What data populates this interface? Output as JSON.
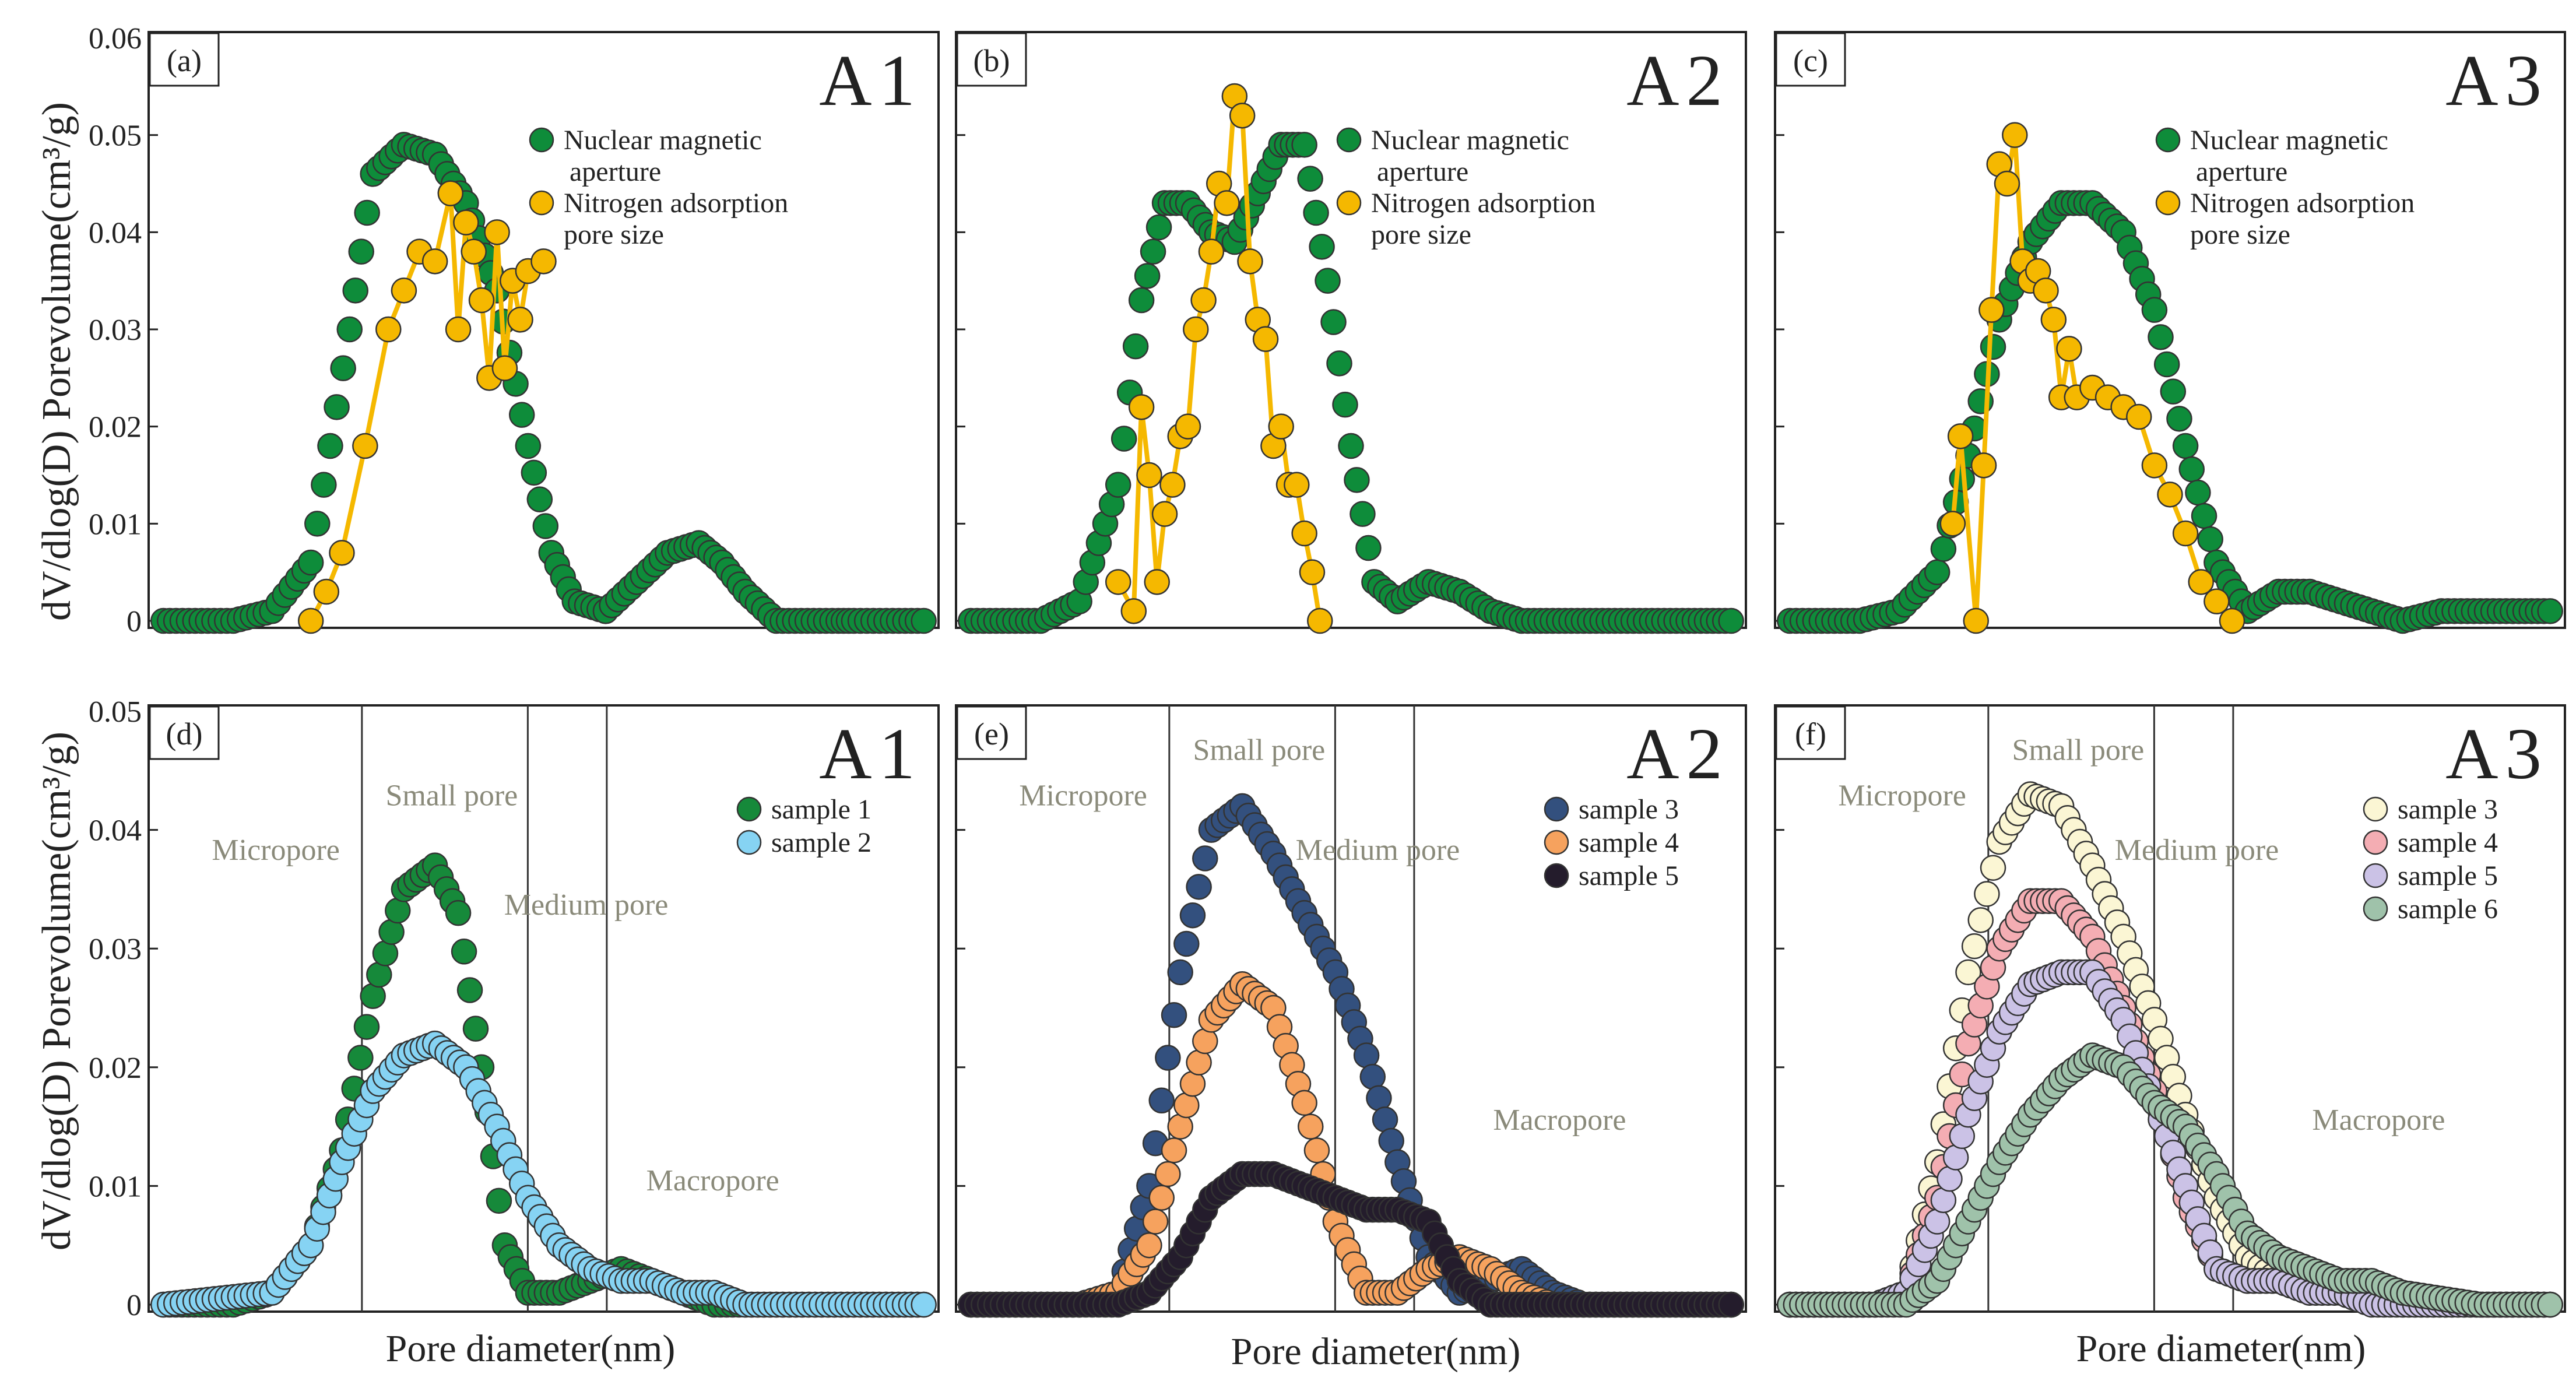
{
  "figure": {
    "y_axis_label": "dV/dlog(D) Porevolume(cm³/g)",
    "x_axis_label": "Pore diameter(nm)"
  },
  "chart_data": [
    {
      "type": "scatter",
      "panel_label": "(a)",
      "sample_label": "A1",
      "ylim": [
        0,
        0.06
      ],
      "yticks": [
        "0",
        "0.01",
        "0.02",
        "0.03",
        "0.04",
        "0.05",
        "0.06"
      ],
      "xlabel": "",
      "ylabel": "dV/dlog(D) Porevolume(cm³/g)",
      "legend": [
        "Nuclear magnetic aperture",
        "Nitrogen adsorption pore size"
      ],
      "series": [
        {
          "name": "Nuclear magnetic aperture",
          "color": "#0e8c3a",
          "x": [
            0.01,
            0.1,
            0.15,
            0.2,
            0.25,
            0.28,
            0.32,
            0.36,
            0.4,
            0.44,
            0.48,
            0.51,
            0.54,
            0.58,
            0.62,
            0.66,
            0.7,
            0.73,
            0.76,
            0.8,
            0.84,
            0.88,
            0.9,
            0.95,
            0.99
          ],
          "y": [
            0,
            0,
            0.001,
            0.006,
            0.03,
            0.046,
            0.049,
            0.048,
            0.043,
            0.034,
            0.018,
            0.007,
            0.002,
            0.001,
            0.004,
            0.007,
            0.008,
            0.006,
            0.003,
            0,
            0,
            0,
            0,
            0,
            0
          ]
        },
        {
          "name": "Nitrogen adsorption pore size",
          "color": "#f5b800",
          "x": [
            0.2,
            0.22,
            0.24,
            0.27,
            0.3,
            0.32,
            0.34,
            0.36,
            0.38,
            0.39,
            0.4,
            0.41,
            0.42,
            0.43,
            0.44,
            0.45,
            0.46,
            0.47,
            0.48,
            0.5
          ],
          "y": [
            0,
            0.003,
            0.007,
            0.018,
            0.03,
            0.034,
            0.038,
            0.037,
            0.044,
            0.03,
            0.041,
            0.038,
            0.033,
            0.025,
            0.04,
            0.026,
            0.035,
            0.031,
            0.036,
            0.037
          ]
        }
      ]
    },
    {
      "type": "scatter",
      "panel_label": "(b)",
      "sample_label": "A2",
      "ylim": [
        0,
        0.06
      ],
      "yticks": [],
      "legend": [
        "Nuclear magnetic aperture",
        "Nitrogen adsorption pore size"
      ],
      "series": [
        {
          "name": "Nuclear magnetic aperture",
          "color": "#0e8c3a",
          "x": [
            0.01,
            0.1,
            0.15,
            0.2,
            0.23,
            0.26,
            0.29,
            0.32,
            0.35,
            0.38,
            0.41,
            0.44,
            0.47,
            0.5,
            0.53,
            0.56,
            0.6,
            0.64,
            0.68,
            0.72,
            0.76,
            0.8,
            0.88,
            0.99
          ],
          "y": [
            0,
            0,
            0.002,
            0.014,
            0.033,
            0.043,
            0.043,
            0.04,
            0.039,
            0.044,
            0.049,
            0.049,
            0.035,
            0.018,
            0.004,
            0.002,
            0.004,
            0.003,
            0.001,
            0,
            0,
            0,
            0,
            0
          ]
        },
        {
          "name": "Nitrogen adsorption pore size",
          "color": "#f5b800",
          "x": [
            0.2,
            0.22,
            0.23,
            0.24,
            0.25,
            0.26,
            0.27,
            0.28,
            0.29,
            0.3,
            0.31,
            0.32,
            0.33,
            0.34,
            0.35,
            0.36,
            0.37,
            0.38,
            0.39,
            0.4,
            0.41,
            0.42,
            0.43,
            0.44,
            0.45,
            0.46
          ],
          "y": [
            0.004,
            0.001,
            0.022,
            0.015,
            0.004,
            0.011,
            0.014,
            0.019,
            0.02,
            0.03,
            0.033,
            0.038,
            0.045,
            0.043,
            0.054,
            0.052,
            0.037,
            0.031,
            0.029,
            0.018,
            0.02,
            0.014,
            0.014,
            0.009,
            0.005,
            0
          ]
        }
      ]
    },
    {
      "type": "scatter",
      "panel_label": "(c)",
      "sample_label": "A3",
      "ylim": [
        0,
        0.06
      ],
      "yticks": [],
      "legend": [
        "Nuclear magnetic aperture",
        "Nitrogen adsorption pore size"
      ],
      "series": [
        {
          "name": "Nuclear magnetic aperture",
          "color": "#0e8c3a",
          "x": [
            0.01,
            0.1,
            0.15,
            0.2,
            0.24,
            0.28,
            0.32,
            0.36,
            0.4,
            0.44,
            0.48,
            0.52,
            0.56,
            0.6,
            0.64,
            0.68,
            0.72,
            0.76,
            0.8,
            0.85,
            0.9,
            0.95,
            0.99
          ],
          "y": [
            0,
            0,
            0.001,
            0.005,
            0.017,
            0.031,
            0.039,
            0.043,
            0.043,
            0.04,
            0.032,
            0.018,
            0.006,
            0.001,
            0.003,
            0.003,
            0.002,
            0.001,
            0,
            0.001,
            0.001,
            0.001,
            0.001
          ]
        },
        {
          "name": "Nitrogen adsorption pore size",
          "color": "#f5b800",
          "x": [
            0.22,
            0.23,
            0.25,
            0.26,
            0.27,
            0.28,
            0.29,
            0.3,
            0.31,
            0.32,
            0.33,
            0.34,
            0.35,
            0.36,
            0.37,
            0.38,
            0.4,
            0.42,
            0.44,
            0.46,
            0.48,
            0.5,
            0.52,
            0.54,
            0.56,
            0.58
          ],
          "y": [
            0.01,
            0.019,
            0,
            0.016,
            0.032,
            0.047,
            0.045,
            0.05,
            0.037,
            0.035,
            0.036,
            0.034,
            0.031,
            0.023,
            0.028,
            0.023,
            0.024,
            0.023,
            0.022,
            0.021,
            0.016,
            0.013,
            0.009,
            0.004,
            0.002,
            0
          ]
        }
      ]
    },
    {
      "type": "scatter",
      "panel_label": "(d)",
      "sample_label": "A1",
      "ylim": [
        0,
        0.05
      ],
      "yticks": [
        "0",
        "0.01",
        "0.02",
        "0.03",
        "0.04",
        "0.05"
      ],
      "region_labels": [
        "Micropore",
        "Small pore",
        "Medium pore",
        "Macropore"
      ],
      "legend": [
        "sample 1",
        "sample 2"
      ],
      "series": [
        {
          "name": "sample 1",
          "color": "#16893a",
          "x": [
            0.01,
            0.05,
            0.1,
            0.15,
            0.2,
            0.24,
            0.28,
            0.32,
            0.36,
            0.39,
            0.42,
            0.45,
            0.48,
            0.52,
            0.56,
            0.6,
            0.64,
            0.68,
            0.72,
            0.76,
            0.8,
            0.9,
            0.99
          ],
          "y": [
            0,
            0,
            0,
            0.001,
            0.005,
            0.013,
            0.026,
            0.035,
            0.037,
            0.033,
            0.02,
            0.005,
            0.001,
            0.001,
            0.002,
            0.003,
            0.002,
            0.001,
            0,
            0,
            0,
            0,
            0
          ]
        },
        {
          "name": "sample 2",
          "color": "#86d3f3",
          "x": [
            0.01,
            0.15,
            0.2,
            0.24,
            0.28,
            0.32,
            0.36,
            0.4,
            0.44,
            0.48,
            0.52,
            0.56,
            0.6,
            0.64,
            0.68,
            0.72,
            0.76,
            0.8,
            0.9,
            0.99
          ],
          "y": [
            0,
            0.001,
            0.005,
            0.012,
            0.018,
            0.021,
            0.022,
            0.02,
            0.015,
            0.009,
            0.005,
            0.003,
            0.002,
            0.002,
            0.001,
            0.001,
            0,
            0,
            0,
            0
          ]
        }
      ]
    },
    {
      "type": "scatter",
      "panel_label": "(e)",
      "sample_label": "A2",
      "ylim": [
        0,
        0.05
      ],
      "yticks": [],
      "region_labels": [
        "Micropore",
        "Small pore",
        "Medium pore",
        "Macropore"
      ],
      "legend": [
        "sample 3",
        "sample 4",
        "sample 5"
      ],
      "series": [
        {
          "name": "sample 3",
          "color": "#33507e",
          "x": [
            0.01,
            0.15,
            0.2,
            0.24,
            0.28,
            0.32,
            0.36,
            0.4,
            0.44,
            0.48,
            0.52,
            0.56,
            0.6,
            0.64,
            0.68,
            0.72,
            0.76,
            0.8,
            0.99
          ],
          "y": [
            0,
            0,
            0.001,
            0.01,
            0.028,
            0.04,
            0.042,
            0.038,
            0.033,
            0.028,
            0.021,
            0.012,
            0.004,
            0.001,
            0.002,
            0.003,
            0.001,
            0,
            0
          ]
        },
        {
          "name": "sample 4",
          "color": "#f6a25e",
          "x": [
            0.01,
            0.15,
            0.2,
            0.24,
            0.28,
            0.32,
            0.36,
            0.4,
            0.44,
            0.48,
            0.52,
            0.56,
            0.6,
            0.64,
            0.68,
            0.72,
            0.76,
            0.8,
            0.99
          ],
          "y": [
            0,
            0,
            0.001,
            0.005,
            0.015,
            0.024,
            0.027,
            0.025,
            0.017,
            0.007,
            0.001,
            0.001,
            0.003,
            0.004,
            0.003,
            0.001,
            0,
            0,
            0
          ]
        },
        {
          "name": "sample 5",
          "color": "#241c2c",
          "x": [
            0.01,
            0.15,
            0.2,
            0.24,
            0.28,
            0.32,
            0.36,
            0.4,
            0.44,
            0.48,
            0.52,
            0.56,
            0.6,
            0.64,
            0.68,
            0.99
          ],
          "y": [
            0,
            0,
            0,
            0.001,
            0.004,
            0.009,
            0.011,
            0.011,
            0.01,
            0.009,
            0.008,
            0.008,
            0.007,
            0.002,
            0,
            0
          ]
        }
      ]
    },
    {
      "type": "scatter",
      "panel_label": "(f)",
      "sample_label": "A3",
      "ylim": [
        0,
        0.05
      ],
      "yticks": [],
      "region_labels": [
        "Micropore",
        "Small pore",
        "Medium pore",
        "Macropore"
      ],
      "legend": [
        "sample 3",
        "sample 4",
        "sample 5",
        "sample 6"
      ],
      "series": [
        {
          "name": "sample 3",
          "color": "#fbf6d4",
          "x": [
            0.01,
            0.12,
            0.16,
            0.2,
            0.24,
            0.28,
            0.32,
            0.36,
            0.4,
            0.44,
            0.48,
            0.52,
            0.56,
            0.6,
            0.64,
            0.68,
            0.72,
            0.76,
            0.8,
            0.9,
            0.99
          ],
          "y": [
            0,
            0,
            0.001,
            0.012,
            0.028,
            0.039,
            0.043,
            0.042,
            0.037,
            0.031,
            0.024,
            0.016,
            0.009,
            0.004,
            0.002,
            0.002,
            0.002,
            0.001,
            0.001,
            0,
            0
          ]
        },
        {
          "name": "sample 4",
          "color": "#f4adb3",
          "x": [
            0.01,
            0.12,
            0.16,
            0.2,
            0.24,
            0.28,
            0.32,
            0.36,
            0.4,
            0.44,
            0.48,
            0.52,
            0.56,
            0.6,
            0.64,
            0.68,
            0.72,
            0.76,
            0.8,
            0.99
          ],
          "y": [
            0,
            0,
            0.001,
            0.009,
            0.022,
            0.03,
            0.034,
            0.034,
            0.031,
            0.025,
            0.018,
            0.009,
            0.003,
            0.002,
            0.002,
            0.001,
            0.001,
            0.001,
            0,
            0
          ]
        },
        {
          "name": "sample 5",
          "color": "#cbc2e6",
          "x": [
            0.01,
            0.12,
            0.16,
            0.2,
            0.24,
            0.28,
            0.32,
            0.36,
            0.4,
            0.44,
            0.48,
            0.52,
            0.56,
            0.6,
            0.64,
            0.68,
            0.72,
            0.76,
            0.8,
            0.99
          ],
          "y": [
            0,
            0,
            0.001,
            0.007,
            0.016,
            0.023,
            0.027,
            0.028,
            0.028,
            0.024,
            0.017,
            0.01,
            0.003,
            0.002,
            0.002,
            0.001,
            0.001,
            0,
            0,
            0
          ]
        },
        {
          "name": "sample 6",
          "color": "#9fc2aa",
          "x": [
            0.01,
            0.12,
            0.16,
            0.2,
            0.24,
            0.28,
            0.32,
            0.36,
            0.4,
            0.44,
            0.48,
            0.52,
            0.56,
            0.6,
            0.64,
            0.68,
            0.72,
            0.76,
            0.8,
            0.9,
            0.99
          ],
          "y": [
            0,
            0,
            0,
            0.002,
            0.007,
            0.012,
            0.016,
            0.019,
            0.021,
            0.02,
            0.017,
            0.015,
            0.011,
            0.006,
            0.004,
            0.003,
            0.002,
            0.002,
            0.001,
            0,
            0
          ]
        }
      ]
    }
  ]
}
